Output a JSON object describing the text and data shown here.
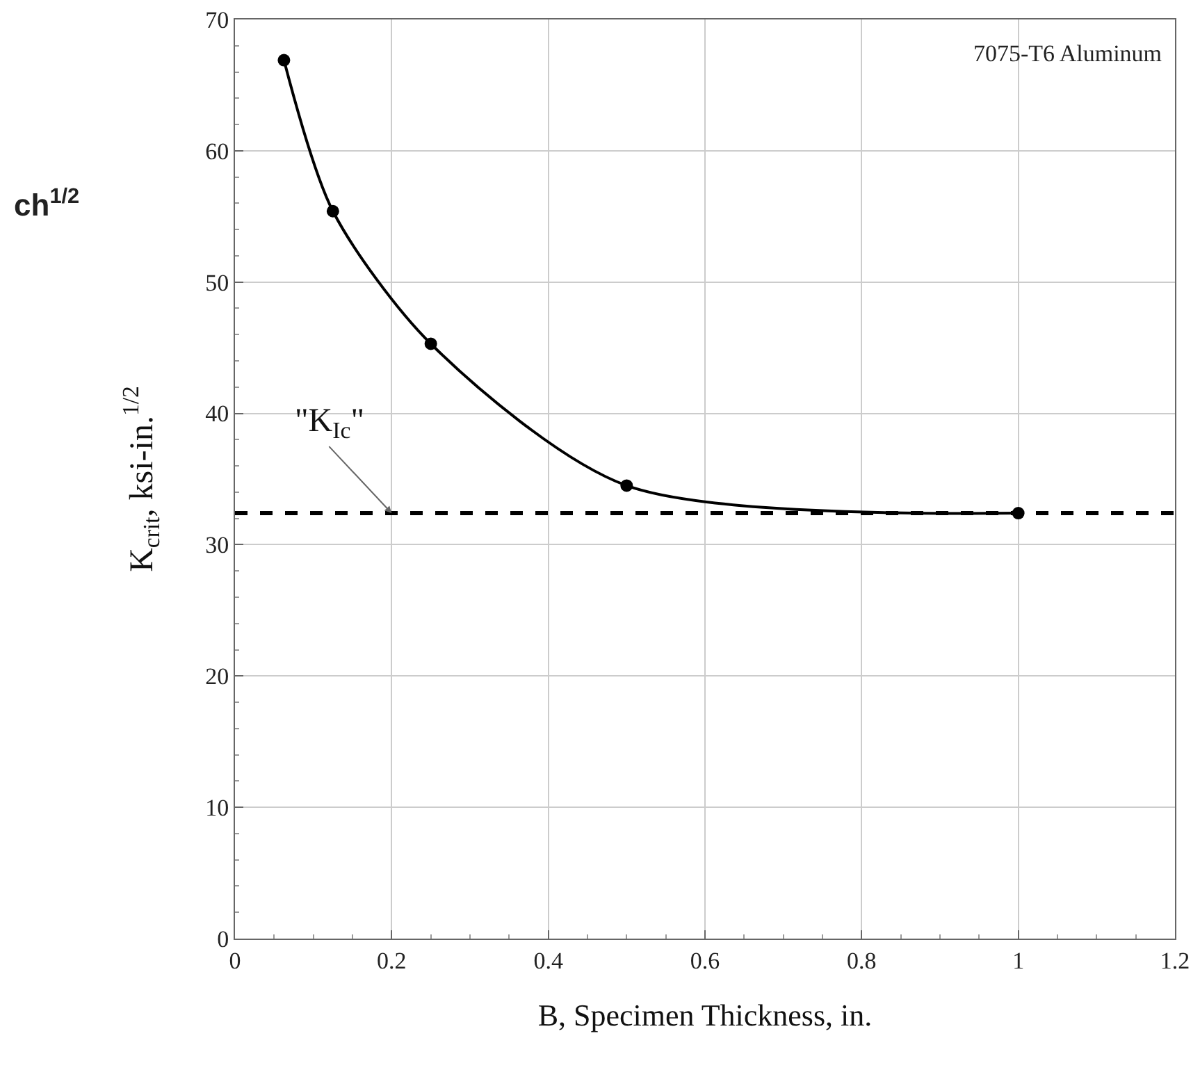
{
  "chart_data": {
    "type": "line",
    "xlabel": "B, Specimen Thickness, in.",
    "ylabel": "K$_{crit}$, ksi-in.$^{1/2}$",
    "x": [
      0.0625,
      0.125,
      0.25,
      0.5,
      1.0
    ],
    "series": [
      {
        "color": "#000000",
        "values": [
          66.9,
          55.4,
          45.3,
          34.5,
          32.4
        ]
      }
    ],
    "xlim": [
      0,
      1.2
    ],
    "xticks": [
      0,
      0.2,
      0.4,
      0.6,
      0.8,
      1,
      1.2
    ],
    "ylim": [
      0,
      70
    ],
    "yticks": [
      0,
      10,
      20,
      30,
      40,
      50,
      60,
      70
    ],
    "grid": true,
    "marker": "circle",
    "line_style": "solid",
    "ref_lines": [
      {
        "axis": "y",
        "value": 32.4,
        "color": "#000000",
        "line_style": "dashed"
      }
    ],
    "annotations": [
      "7075-T6 Aluminum",
      {
        "text": "\"K$_{Ic}$\"",
        "x": 0.2,
        "y": 32.4
      },
      "ch$^{1/2}$"
    ]
  }
}
